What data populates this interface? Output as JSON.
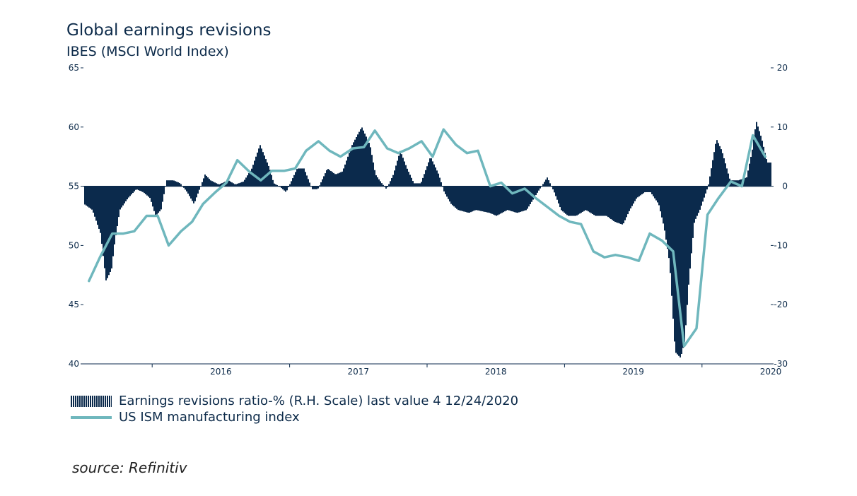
{
  "header": {
    "title": "Global earnings revisions",
    "subtitle": "IBES (MSCI World Index)"
  },
  "legend": {
    "items": [
      {
        "label": "Earnings revisions ratio-% (R.H. Scale) last value 4 12/24/2020",
        "type": "bars",
        "color": "#0b2a4c"
      },
      {
        "label": "US ISM manufacturing index",
        "type": "line",
        "color": "#6fb7bd"
      }
    ]
  },
  "source": "source: Refinitiv",
  "chart_data": {
    "type": "line",
    "title": "Global earnings revisions",
    "subtitle": "IBES (MSCI World Index)",
    "x_tick_labels": [
      "2016",
      "2017",
      "2018",
      "2019",
      "2020"
    ],
    "left_axis": {
      "ticks": [
        "65",
        "60",
        "55",
        "50",
        "45",
        "40"
      ],
      "range": [
        40,
        65
      ]
    },
    "right_axis": {
      "ticks": [
        "20",
        "10",
        "0",
        "-10",
        "-20",
        "-30"
      ],
      "range": [
        -30,
        20
      ]
    },
    "grid": false,
    "legend_position": "bottom",
    "series": [
      {
        "name": "Earnings revisions ratio-% (R.H. Scale) last value 4 12/24/2020",
        "axis": "right",
        "chart": "area",
        "color": "#0b2a4c",
        "x": [
          2015.5,
          2015.56,
          2015.62,
          2015.66,
          2015.7,
          2015.72,
          2015.76,
          2015.82,
          2015.88,
          2015.93,
          2015.98,
          2016.02,
          2016.06,
          2016.1,
          2016.15,
          2016.2,
          2016.25,
          2016.3,
          2016.38,
          2016.42,
          2016.48,
          2016.55,
          2016.6,
          2016.66,
          2016.72,
          2016.78,
          2016.85,
          2016.88,
          2016.92,
          2016.97,
          2017.0,
          2017.05,
          2017.1,
          2017.16,
          2017.2,
          2017.27,
          2017.33,
          2017.38,
          2017.45,
          2017.52,
          2017.58,
          2017.62,
          2017.65,
          2017.7,
          2017.75,
          2017.8,
          2017.85,
          2017.9,
          2017.95,
          2018.02,
          2018.08,
          2018.12,
          2018.17,
          2018.22,
          2018.3,
          2018.35,
          2018.45,
          2018.5,
          2018.58,
          2018.65,
          2018.72,
          2018.8,
          2018.87,
          2018.92,
          2018.97,
          2019.02,
          2019.08,
          2019.15,
          2019.22,
          2019.3,
          2019.36,
          2019.42,
          2019.47,
          2019.52,
          2019.58,
          2019.62,
          2019.68,
          2019.72,
          2019.76,
          2019.8,
          2019.84,
          2019.87,
          2019.9,
          2019.94,
          2019.98,
          2020.04,
          2020.1,
          2020.14,
          2020.2,
          2020.26,
          2020.32,
          2020.36,
          2020.39,
          2020.43,
          2020.47,
          2020.5
        ],
        "values": [
          -3,
          -4,
          -8,
          -16,
          -14,
          -10,
          -4,
          -2,
          -0.5,
          -1,
          -2,
          -5,
          -4,
          1,
          1,
          0.5,
          -1,
          -3,
          2,
          1,
          0.3,
          1,
          0.3,
          0.8,
          3,
          7,
          3,
          0.5,
          0,
          -1,
          0.5,
          3,
          3,
          -0.5,
          -0.5,
          3,
          2,
          2.5,
          7,
          10,
          7,
          2,
          1,
          -0.5,
          2,
          6,
          3,
          0.5,
          0.5,
          5,
          2,
          -1,
          -3,
          -4,
          -4.5,
          -4,
          -4.5,
          -5,
          -4,
          -4.5,
          -4,
          -1,
          1.5,
          -1,
          -4,
          -5,
          -5,
          -4,
          -5,
          -5,
          -6,
          -6.5,
          -4,
          -2,
          -1,
          -1,
          -3,
          -7,
          -13,
          -28,
          -29,
          -26,
          -16,
          -6,
          -4,
          0,
          8,
          6,
          1,
          1,
          1.5,
          6,
          11,
          8,
          4,
          4
        ]
      },
      {
        "name": "US ISM manufacturing index",
        "axis": "left",
        "chart": "line",
        "color": "#6fb7bd",
        "x": [
          2015.54,
          2015.62,
          2015.71,
          2015.79,
          2015.87,
          2015.96,
          2016.04,
          2016.12,
          2016.21,
          2016.29,
          2016.37,
          2016.46,
          2016.54,
          2016.62,
          2016.71,
          2016.79,
          2016.87,
          2016.96,
          2017.04,
          2017.12,
          2017.21,
          2017.29,
          2017.37,
          2017.46,
          2017.54,
          2017.62,
          2017.71,
          2017.79,
          2017.87,
          2017.96,
          2018.04,
          2018.12,
          2018.21,
          2018.29,
          2018.37,
          2018.46,
          2018.54,
          2018.62,
          2018.71,
          2018.79,
          2018.87,
          2018.96,
          2019.04,
          2019.12,
          2019.21,
          2019.29,
          2019.37,
          2019.46,
          2019.54,
          2019.62,
          2019.71,
          2019.79,
          2019.87,
          2019.96,
          2020.04,
          2020.12,
          2020.21,
          2020.29,
          2020.37,
          2020.46
        ],
        "values": [
          47.0,
          49.0,
          51.0,
          51.0,
          51.2,
          52.5,
          52.5,
          50.0,
          51.2,
          52.0,
          53.5,
          54.5,
          55.3,
          57.2,
          56.2,
          55.5,
          56.3,
          56.3,
          56.5,
          58.0,
          58.8,
          58.0,
          57.5,
          58.2,
          58.3,
          59.7,
          58.2,
          57.8,
          58.2,
          58.8,
          57.5,
          59.8,
          58.5,
          57.8,
          58.0,
          55.0,
          55.3,
          54.4,
          54.8,
          54.0,
          53.3,
          52.5,
          52.0,
          51.8,
          49.5,
          49.0,
          49.2,
          49.0,
          48.7,
          51.0,
          50.4,
          49.5,
          41.5,
          43.0,
          52.6,
          54.0,
          55.4,
          55.0,
          59.3,
          57.5
        ]
      }
    ]
  }
}
